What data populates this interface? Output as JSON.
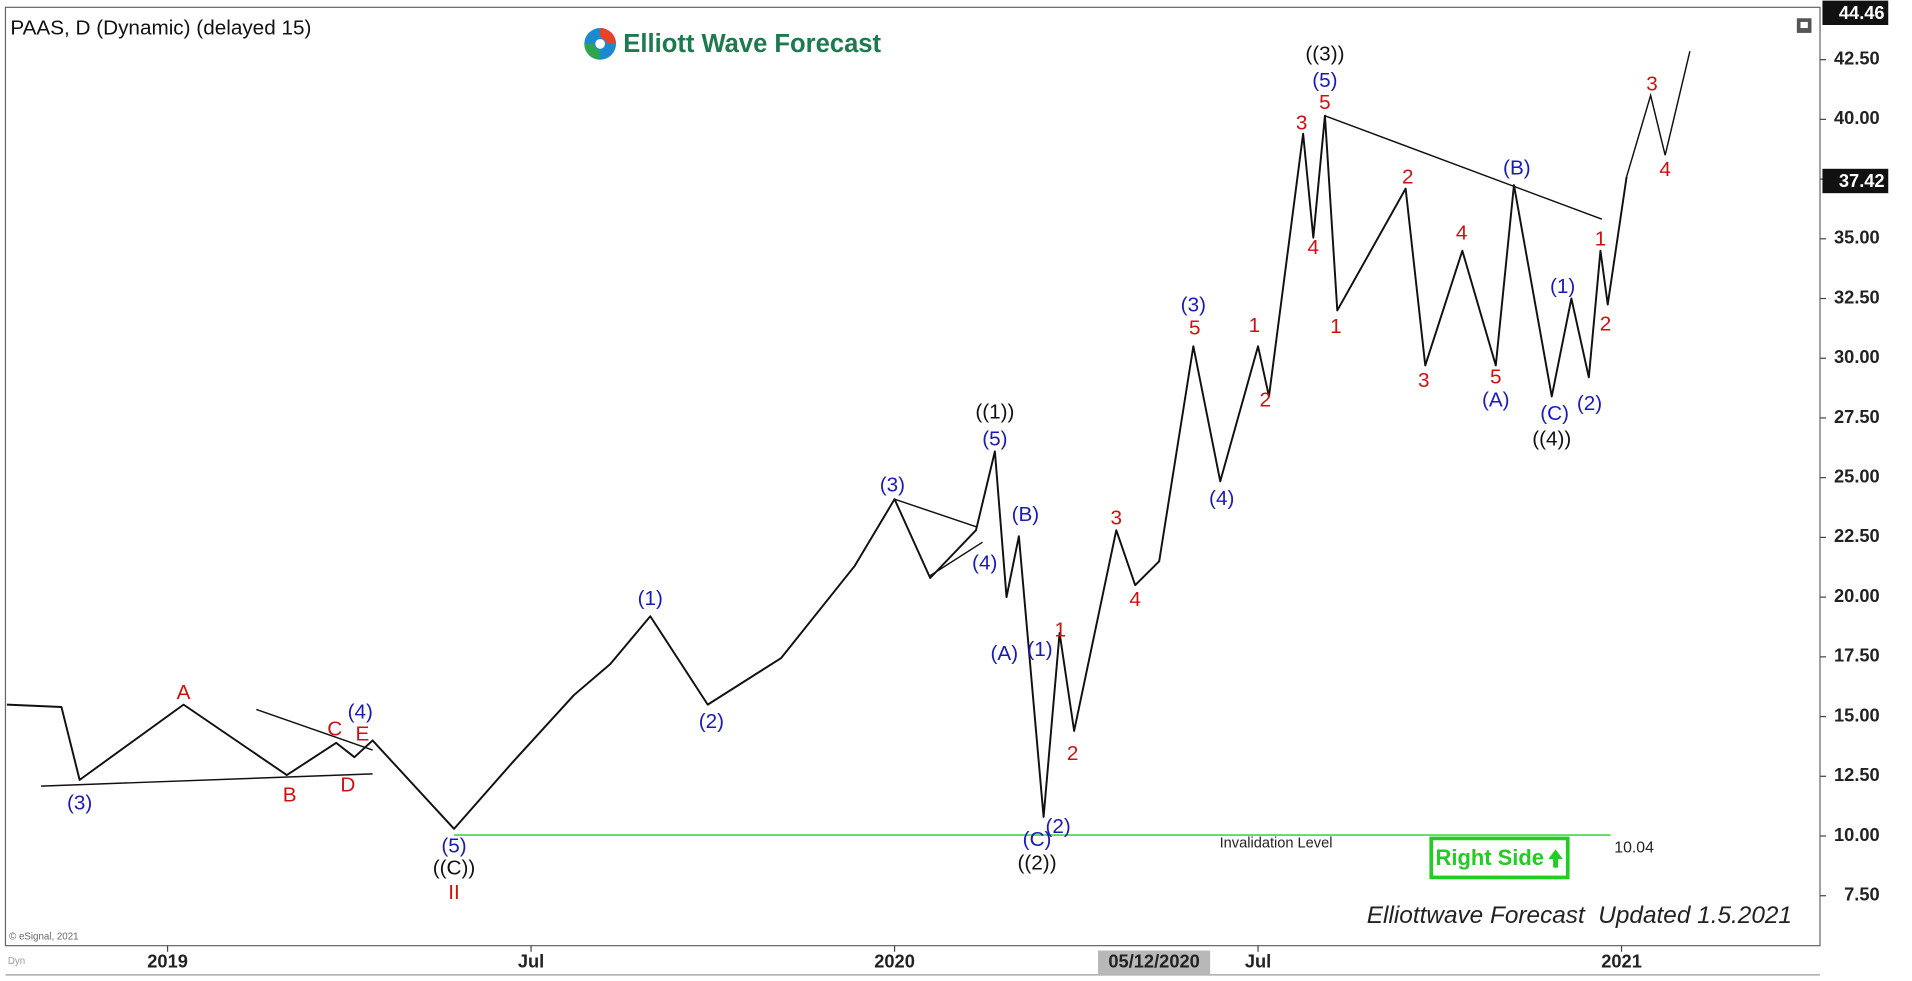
{
  "chart_data": {
    "type": "line",
    "title": "PAAS, D (Dynamic) (delayed 15)",
    "brand": "Elliott Wave Forecast",
    "footer": "Elliottwave Forecast  Updated 1.5.2021",
    "source": "© eSignal, 2021",
    "corner_label": "Dyn",
    "signal": "Right Side",
    "color": "#111111",
    "x": [
      2018.779,
      2018.854,
      2018.879,
      2019.022,
      2019.164,
      2019.232,
      2019.257,
      2019.282,
      2019.394,
      2019.475,
      2019.559,
      2019.609,
      2019.664,
      2019.743,
      2019.844,
      2019.945,
      2020.0,
      2020.049,
      2020.112,
      2020.138,
      2020.154,
      2020.171,
      2020.205,
      2020.227,
      2020.247,
      2020.305,
      2020.331,
      2020.364,
      2020.411,
      2020.448,
      2020.5,
      2020.515,
      2020.562,
      2020.576,
      2020.592,
      2020.609,
      2020.703,
      2020.73,
      2020.781,
      2020.827,
      2020.852,
      2020.904,
      2020.931,
      2020.955,
      2020.971,
      2020.981,
      2021.007
    ],
    "values": [
      15.5,
      15.4,
      12.35,
      15.5,
      12.55,
      13.9,
      13.3,
      14.0,
      10.3,
      13.1,
      15.9,
      17.2,
      19.2,
      15.5,
      17.45,
      21.3,
      24.1,
      20.8,
      22.8,
      26.1,
      20.0,
      22.55,
      10.8,
      18.5,
      14.4,
      22.8,
      20.5,
      21.5,
      30.5,
      24.85,
      30.5,
      28.4,
      39.4,
      35.05,
      40.15,
      32.0,
      37.1,
      29.7,
      34.5,
      29.7,
      37.25,
      28.4,
      32.5,
      29.2,
      34.5,
      32.25,
      37.6
    ],
    "projection": {
      "x": [
        2021.007,
        2021.04,
        2021.06,
        2021.094
      ],
      "values": [
        37.6,
        41.0,
        38.5,
        42.85
      ]
    },
    "trendlines": [
      {
        "x": [
          2018.826,
          2019.282
        ],
        "values": [
          12.09,
          12.6
        ]
      },
      {
        "x": [
          2019.122,
          2019.282
        ],
        "values": [
          15.3,
          13.6
        ]
      },
      {
        "x": [
          2020.0,
          2020.112
        ],
        "values": [
          24.1,
          22.95
        ]
      },
      {
        "x": [
          2020.049,
          2020.121
        ],
        "values": [
          20.9,
          22.3
        ]
      },
      {
        "x": [
          2020.592,
          2020.973
        ],
        "values": [
          40.15,
          35.82
        ]
      }
    ],
    "invalidation": {
      "label": "Invalidation Level",
      "value": 10.04,
      "x": [
        2019.394,
        2020.985
      ],
      "color": "#3ddc3d"
    },
    "last_price": 37.42,
    "high_price": 44.46,
    "cursor": {
      "label": "05/12/2020",
      "x": 2020.357
    },
    "annotations": [
      {
        "text": "(3)",
        "x": 2018.879,
        "y": 11.33,
        "color": "#1a1ab8"
      },
      {
        "text": "(4)",
        "x": 2019.265,
        "y": 15.15,
        "color": "#1a1ab8"
      },
      {
        "text": "(5)",
        "x": 2019.394,
        "y": 9.54,
        "color": "#1a1ab8"
      },
      {
        "text": "(1)",
        "x": 2019.664,
        "y": 19.9,
        "color": "#1a1ab8"
      },
      {
        "text": "(2)",
        "x": 2019.748,
        "y": 14.74,
        "color": "#1a1ab8"
      },
      {
        "text": "(3)",
        "x": 2019.997,
        "y": 24.64,
        "color": "#1a1ab8"
      },
      {
        "text": "(4)",
        "x": 2020.124,
        "y": 21.38,
        "color": "#1a1ab8"
      },
      {
        "text": "(5)",
        "x": 2020.138,
        "y": 26.58,
        "color": "#1a1ab8"
      },
      {
        "text": "(B)",
        "x": 2020.18,
        "y": 23.42,
        "color": "#1a1ab8"
      },
      {
        "text": "(A)",
        "x": 2020.151,
        "y": 17.6,
        "color": "#1a1ab8"
      },
      {
        "text": "(1)",
        "x": 2020.2,
        "y": 17.76,
        "color": "#1a1ab8"
      },
      {
        "text": "(C)",
        "x": 2020.196,
        "y": 9.8,
        "color": "#1a1ab8"
      },
      {
        "text": "(2)",
        "x": 2020.225,
        "y": 10.36,
        "color": "#1a1ab8"
      },
      {
        "text": "(3)",
        "x": 2020.411,
        "y": 32.19,
        "color": "#1a1ab8"
      },
      {
        "text": "(4)",
        "x": 2020.45,
        "y": 24.08,
        "color": "#1a1ab8"
      },
      {
        "text": "(5)",
        "x": 2020.592,
        "y": 41.58,
        "color": "#1a1ab8"
      },
      {
        "text": "(B)",
        "x": 2020.856,
        "y": 37.91,
        "color": "#1a1ab8"
      },
      {
        "text": "(A)",
        "x": 2020.827,
        "y": 28.21,
        "color": "#1a1ab8"
      },
      {
        "text": "(1)",
        "x": 2020.919,
        "y": 32.96,
        "color": "#1a1ab8"
      },
      {
        "text": "(C)",
        "x": 2020.908,
        "y": 27.65,
        "color": "#1a1ab8"
      },
      {
        "text": "(2)",
        "x": 2020.956,
        "y": 28.06,
        "color": "#1a1ab8"
      },
      {
        "text": "A",
        "x": 2019.022,
        "y": 15.97,
        "color": "#d01010"
      },
      {
        "text": "B",
        "x": 2019.168,
        "y": 11.68,
        "color": "#d01010"
      },
      {
        "text": "C",
        "x": 2019.23,
        "y": 14.44,
        "color": "#d01010"
      },
      {
        "text": "D",
        "x": 2019.248,
        "y": 12.09,
        "color": "#d01010"
      },
      {
        "text": "E",
        "x": 2019.268,
        "y": 14.23,
        "color": "#d01010"
      },
      {
        "text": "1",
        "x": 2020.228,
        "y": 18.57,
        "color": "#d01010"
      },
      {
        "text": "2",
        "x": 2020.245,
        "y": 13.42,
        "color": "#d01010"
      },
      {
        "text": "3",
        "x": 2020.305,
        "y": 23.27,
        "color": "#d01010"
      },
      {
        "text": "4",
        "x": 2020.331,
        "y": 19.85,
        "color": "#d01010"
      },
      {
        "text": "5",
        "x": 2020.413,
        "y": 31.22,
        "color": "#d01010"
      },
      {
        "text": "1",
        "x": 2020.495,
        "y": 31.33,
        "color": "#d01010"
      },
      {
        "text": "2",
        "x": 2020.51,
        "y": 28.21,
        "color": "#d01010"
      },
      {
        "text": "3",
        "x": 2020.56,
        "y": 39.8,
        "color": "#d01010"
      },
      {
        "text": "4",
        "x": 2020.576,
        "y": 34.59,
        "color": "#d01010"
      },
      {
        "text": "5",
        "x": 2020.592,
        "y": 40.66,
        "color": "#d01010"
      },
      {
        "text": "1",
        "x": 2020.607,
        "y": 31.28,
        "color": "#d01010"
      },
      {
        "text": "2",
        "x": 2020.706,
        "y": 37.55,
        "color": "#d01010"
      },
      {
        "text": "3",
        "x": 2020.728,
        "y": 29.03,
        "color": "#d01010"
      },
      {
        "text": "4",
        "x": 2020.78,
        "y": 35.2,
        "color": "#d01010"
      },
      {
        "text": "5",
        "x": 2020.827,
        "y": 29.18,
        "color": "#d01010"
      },
      {
        "text": "1",
        "x": 2020.971,
        "y": 34.95,
        "color": "#d01010"
      },
      {
        "text": "2",
        "x": 2020.978,
        "y": 31.38,
        "color": "#d01010"
      },
      {
        "text": "3",
        "x": 2021.042,
        "y": 41.43,
        "color": "#d01010"
      },
      {
        "text": "4",
        "x": 2021.06,
        "y": 37.86,
        "color": "#d01010"
      },
      {
        "text": "II",
        "x": 2019.394,
        "y": 7.6,
        "color": "#d01010"
      },
      {
        "text": "((1))",
        "x": 2020.138,
        "y": 27.7,
        "color": "#111111"
      },
      {
        "text": "((C))",
        "x": 2019.394,
        "y": 8.62,
        "color": "#111111"
      },
      {
        "text": "((2))",
        "x": 2020.196,
        "y": 8.83,
        "color": "#111111"
      },
      {
        "text": "((3))",
        "x": 2020.592,
        "y": 42.7,
        "color": "#111111"
      },
      {
        "text": "((4))",
        "x": 2020.904,
        "y": 26.58,
        "color": "#111111"
      }
    ],
    "xlim": [
      2018.777,
      2021.273
    ],
    "xticks": [
      {
        "value": 2019,
        "label": "2019"
      },
      {
        "value": 2019.5,
        "label": "Jul"
      },
      {
        "value": 2020,
        "label": "2020"
      },
      {
        "value": 2020.5,
        "label": "Jul"
      },
      {
        "value": 2021,
        "label": "2021"
      }
    ],
    "ylim": [
      5.41,
      44.69
    ],
    "yticks": [
      {
        "value": 7.5,
        "label": "7.50"
      },
      {
        "value": 10,
        "label": "10.00"
      },
      {
        "value": 12.5,
        "label": "12.50"
      },
      {
        "value": 15,
        "label": "15.00"
      },
      {
        "value": 17.5,
        "label": "17.50"
      },
      {
        "value": 20,
        "label": "20.00"
      },
      {
        "value": 22.5,
        "label": "22.50"
      },
      {
        "value": 25,
        "label": "25.00"
      },
      {
        "value": 27.5,
        "label": "27.50"
      },
      {
        "value": 30,
        "label": "30.00"
      },
      {
        "value": 32.5,
        "label": "32.50"
      },
      {
        "value": 35,
        "label": "35.00"
      },
      {
        "value": 37.5,
        "label": "37.50"
      },
      {
        "value": 40,
        "label": "40.00"
      },
      {
        "value": 42.5,
        "label": "42.50"
      }
    ]
  }
}
